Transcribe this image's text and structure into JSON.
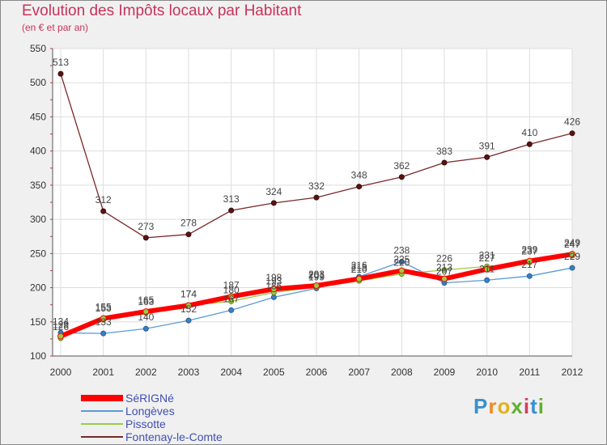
{
  "title": "Evolution des Impôts locaux par Habitant",
  "subtitle": "(en € et par an)",
  "logo_text": "Proxiti",
  "chart_data": {
    "type": "line",
    "title": "Evolution des Impôts locaux par Habitant",
    "subtitle": "(en € et par an)",
    "xlabel": "",
    "ylabel": "",
    "ylim": [
      100,
      550
    ],
    "yticks": [
      "100",
      "150",
      "200",
      "250",
      "300",
      "350",
      "400",
      "450",
      "500",
      "550"
    ],
    "categories": [
      "2000",
      "2001",
      "2002",
      "2003",
      "2004",
      "2005",
      "2006",
      "2007",
      "2008",
      "2009",
      "2010",
      "2011",
      "2012"
    ],
    "series": [
      {
        "name": "SéRIGNé",
        "color": "#ff0000",
        "values": [
          129,
          155,
          165,
          174,
          187,
          198,
          203,
          213,
          225,
          213,
          227,
          239,
          249
        ],
        "labels": [
          "129",
          "155",
          "165",
          "174",
          "187",
          "198",
          "203",
          "213",
          "225",
          "213",
          "227",
          "239",
          "249"
        ]
      },
      {
        "name": "Longèves",
        "color": "#5b9bd5",
        "values": [
          134,
          133,
          140,
          152,
          167,
          186,
          199,
          216,
          238,
          207,
          211,
          217,
          229
        ],
        "labels": [
          "134",
          "133",
          "140",
          "152",
          "167",
          "186",
          "199",
          "216",
          "238",
          "207",
          "211",
          "217",
          "229"
        ]
      },
      {
        "name": "Pissotte",
        "color": "#99cc44",
        "values": [
          126,
          153,
          163,
          174,
          180,
          193,
          201,
          210,
          220,
          226,
          231,
          237,
          247
        ],
        "labels": [
          "126",
          "153",
          "163",
          "174",
          "180",
          "193",
          "201",
          "210",
          "220",
          "226",
          "231",
          "237",
          "247"
        ]
      },
      {
        "name": "Fontenay-le-Comte",
        "color": "#7a2828",
        "values": [
          513,
          312,
          273,
          278,
          313,
          324,
          332,
          348,
          362,
          383,
          391,
          410,
          426
        ],
        "labels": [
          "513",
          "312",
          "273",
          "278",
          "313",
          "324",
          "332",
          "348",
          "362",
          "383",
          "391",
          "410",
          "426"
        ]
      }
    ]
  }
}
